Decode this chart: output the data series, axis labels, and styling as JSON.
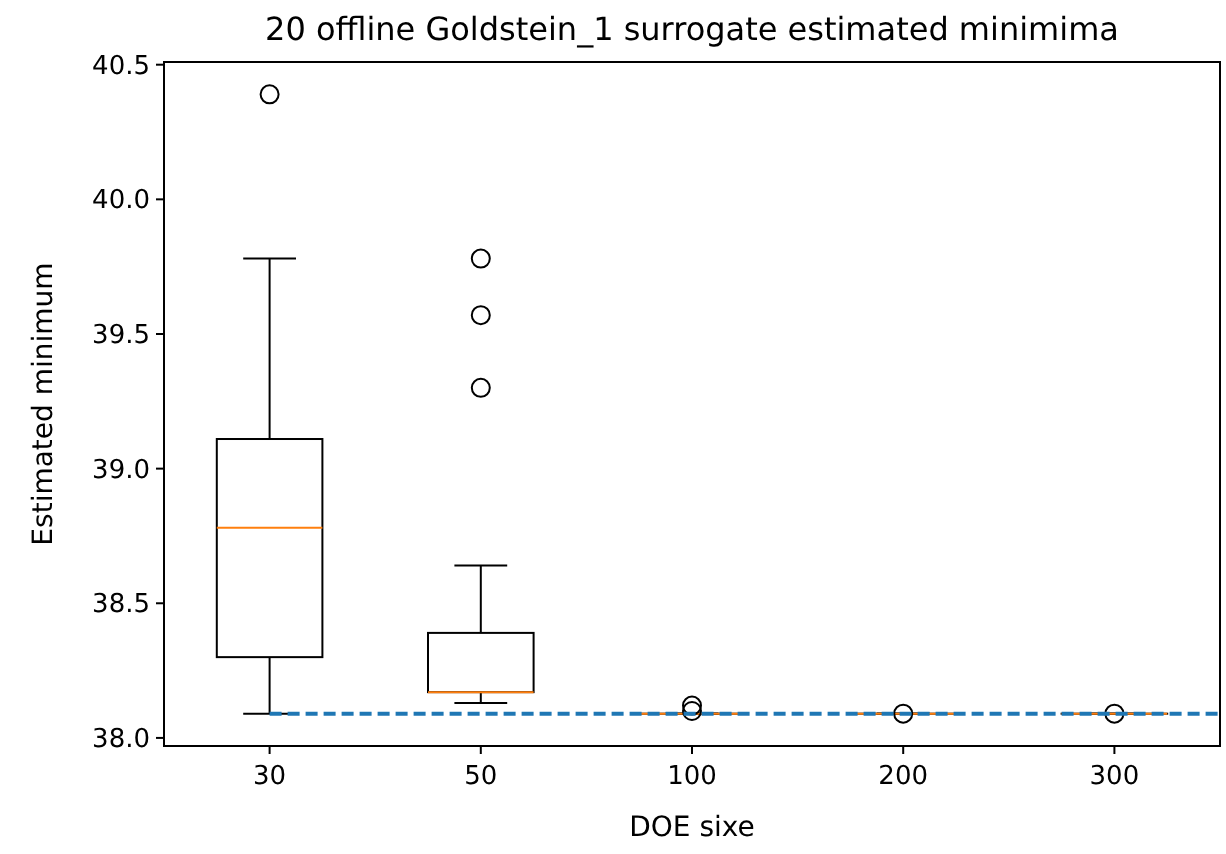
{
  "chart_data": {
    "type": "box",
    "title": "20 offline Goldstein_1 surrogate estimated minimima",
    "xlabel": "DOE sixe",
    "ylabel": "Estimated minimum",
    "categories": [
      "30",
      "50",
      "100",
      "200",
      "300"
    ],
    "boxes": [
      {
        "low": 38.09,
        "q1": 38.3,
        "median": 38.78,
        "q3": 39.11,
        "high": 39.78,
        "outliers": [
          40.39
        ]
      },
      {
        "low": 38.13,
        "q1": 38.17,
        "median": 38.17,
        "q3": 38.39,
        "high": 38.64,
        "outliers": [
          39.78,
          39.57,
          39.3
        ]
      },
      {
        "low": 38.09,
        "q1": 38.09,
        "median": 38.09,
        "q3": 38.09,
        "high": 38.09,
        "outliers": [
          38.12,
          38.1
        ]
      },
      {
        "low": 38.09,
        "q1": 38.09,
        "median": 38.09,
        "q3": 38.09,
        "high": 38.09,
        "outliers": [
          38.09
        ]
      },
      {
        "low": 38.09,
        "q1": 38.09,
        "median": 38.09,
        "q3": 38.09,
        "high": 38.09,
        "outliers": [
          38.09
        ]
      }
    ],
    "color": "#000000",
    "ylim": [
      37.97,
      40.51
    ],
    "yticks": [
      {
        "value": 38,
        "label": "38.0"
      },
      38.5,
      {
        "value": 39,
        "label": "39.0"
      },
      39.5,
      {
        "value": 40,
        "label": "40.0"
      },
      40.5
    ],
    "ref_lines": [
      {
        "axis": "y",
        "value": 38.09,
        "color": "#1f77b4",
        "line_style": "dashed"
      }
    ],
    "grid": false
  }
}
